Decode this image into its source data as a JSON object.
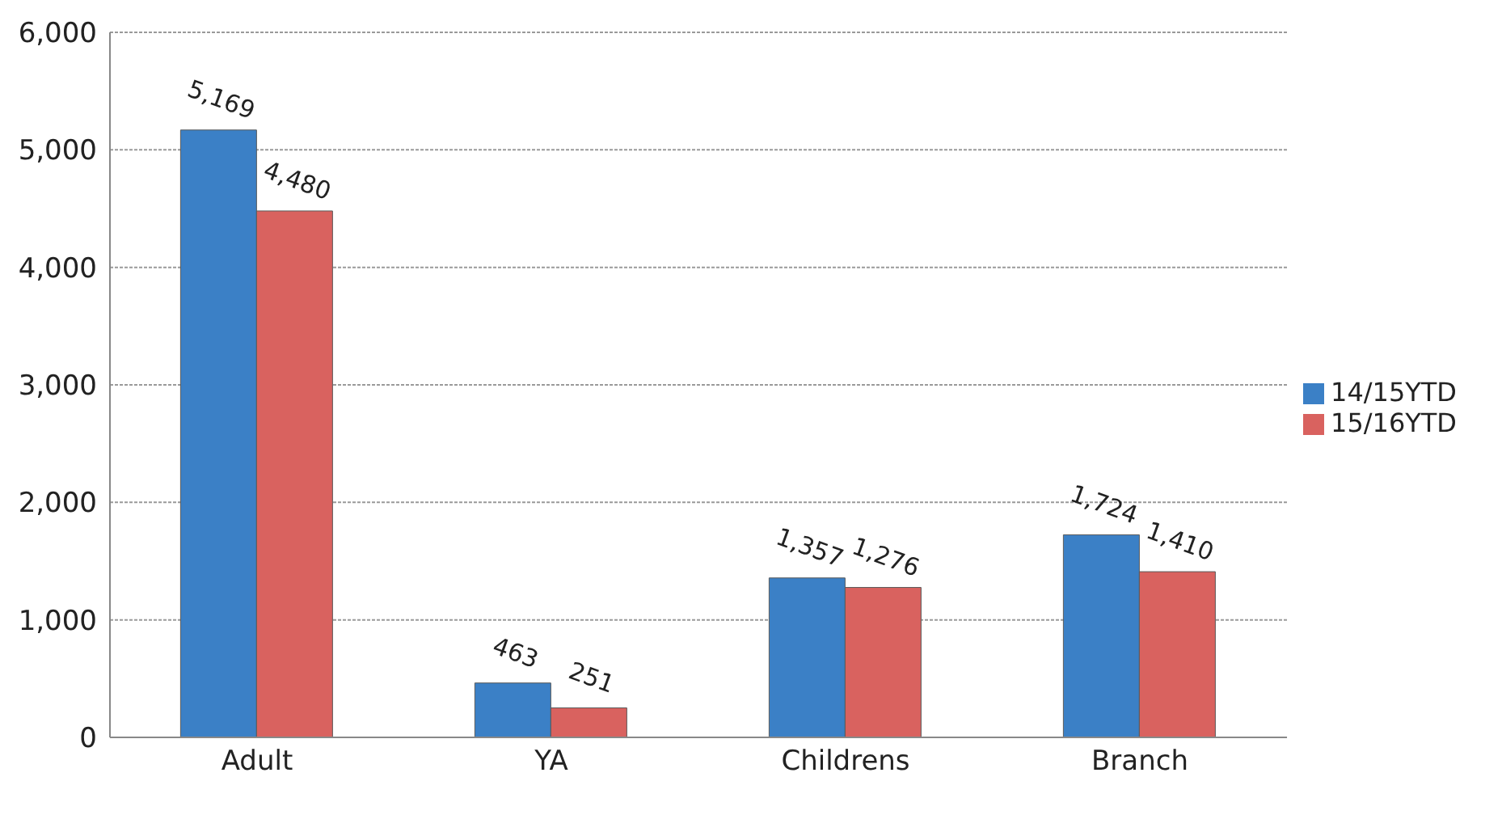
{
  "chart_data": {
    "type": "bar",
    "categories": [
      "Adult",
      "YA",
      "Childrens",
      "Branch"
    ],
    "series": [
      {
        "name": "14/15YTD",
        "color": "#3b80c6",
        "values": [
          5169,
          463,
          1357,
          1724
        ],
        "value_labels": [
          "5,169",
          "463",
          "1,357",
          "1,724"
        ]
      },
      {
        "name": "15/16YTD",
        "color": "#d9625f",
        "values": [
          4480,
          251,
          1276,
          1410
        ],
        "value_labels": [
          "4,480",
          "251",
          "1,276",
          "1,410"
        ]
      }
    ],
    "ylim": [
      0,
      6000
    ],
    "yticks": [
      {
        "value": 0,
        "label": "0"
      },
      {
        "value": 1000,
        "label": "1,000"
      },
      {
        "value": 2000,
        "label": "2,000"
      },
      {
        "value": 3000,
        "label": "3,000"
      },
      {
        "value": 4000,
        "label": "4,000"
      },
      {
        "value": 5000,
        "label": "5,000"
      },
      {
        "value": 6000,
        "label": "6,000"
      }
    ],
    "grid": "y",
    "legend": "right"
  }
}
